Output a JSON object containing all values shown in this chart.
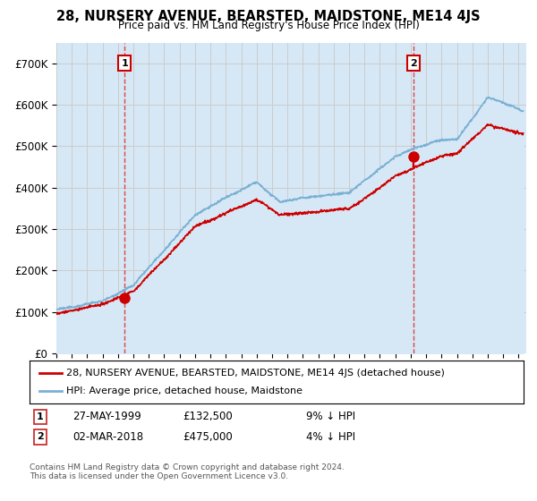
{
  "title": "28, NURSERY AVENUE, BEARSTED, MAIDSTONE, ME14 4JS",
  "subtitle": "Price paid vs. HM Land Registry's House Price Index (HPI)",
  "ylabel_ticks": [
    "£0",
    "£100K",
    "£200K",
    "£300K",
    "£400K",
    "£500K",
    "£600K",
    "£700K"
  ],
  "ytick_values": [
    0,
    100000,
    200000,
    300000,
    400000,
    500000,
    600000,
    700000
  ],
  "ylim": [
    0,
    750000
  ],
  "xlim_start": 1995.0,
  "xlim_end": 2025.5,
  "sale1_date": 1999.42,
  "sale1_price": 132500,
  "sale2_date": 2018.17,
  "sale2_price": 475000,
  "hpi_color": "#7ab0d4",
  "hpi_fill_color": "#d6e8f5",
  "price_color": "#cc0000",
  "vline_color": "#dd3333",
  "grid_color": "#cccccc",
  "background_color": "#ffffff",
  "legend_line1": "28, NURSERY AVENUE, BEARSTED, MAIDSTONE, ME14 4JS (detached house)",
  "legend_line2": "HPI: Average price, detached house, Maidstone",
  "annotation1_date": "27-MAY-1999",
  "annotation1_price": "£132,500",
  "annotation1_pct": "9% ↓ HPI",
  "annotation2_date": "02-MAR-2018",
  "annotation2_price": "£475,000",
  "annotation2_pct": "4% ↓ HPI",
  "footer": "Contains HM Land Registry data © Crown copyright and database right 2024.\nThis data is licensed under the Open Government Licence v3.0."
}
